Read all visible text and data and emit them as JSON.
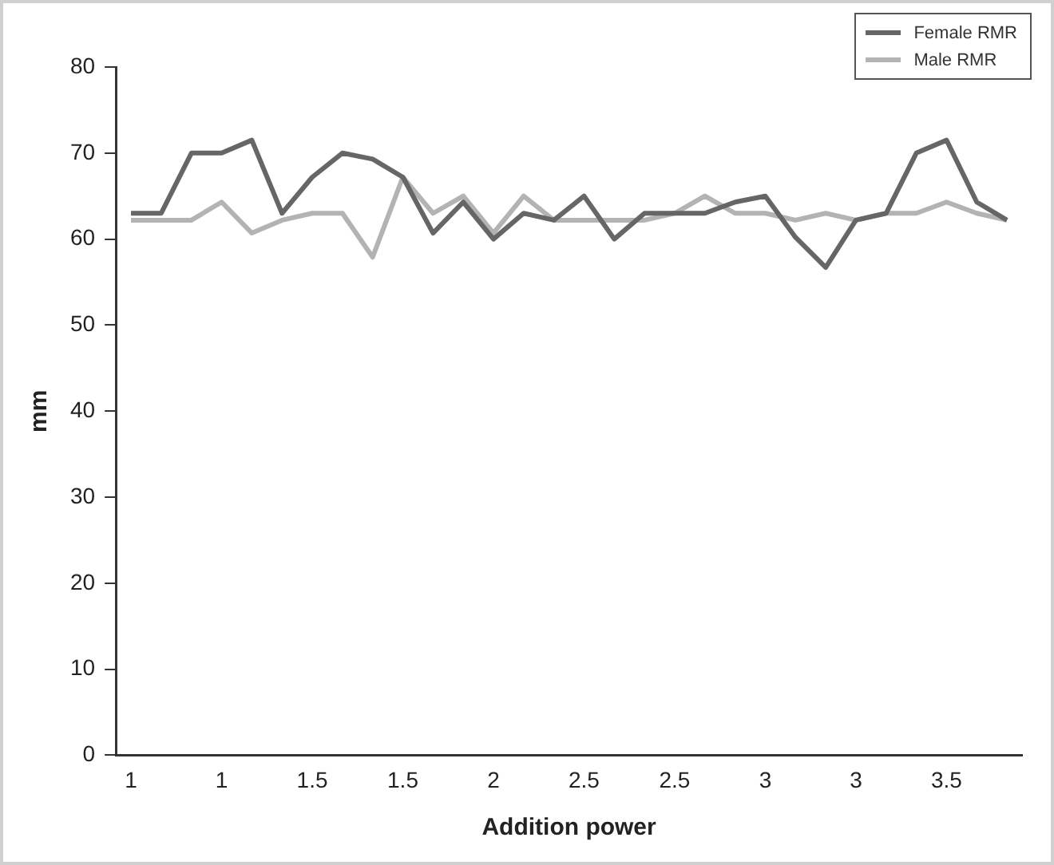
{
  "chart_data": {
    "type": "line",
    "xlabel": "Addition power",
    "ylabel": "mm",
    "categories": [
      "1",
      null,
      null,
      "1",
      null,
      null,
      "1.5",
      null,
      null,
      "1.5",
      null,
      null,
      "2",
      null,
      null,
      "2.5",
      null,
      null,
      "2.5",
      null,
      null,
      "3",
      null,
      null,
      "3",
      null,
      null,
      "3.5",
      null,
      null
    ],
    "series": [
      {
        "name": "Female RMR",
        "color": "#666666",
        "values": [
          63,
          63,
          70,
          70,
          71.5,
          63,
          67.2,
          70,
          69.3,
          67.2,
          60.7,
          64.3,
          60,
          63,
          62.2,
          65,
          60,
          63,
          63,
          63,
          64.3,
          65,
          60.2,
          56.7,
          62.2,
          63,
          70,
          71.5,
          64.3,
          62.2
        ]
      },
      {
        "name": "Male RMR",
        "color": "#b3b3b3",
        "values": [
          62.2,
          62.2,
          62.2,
          64.3,
          60.7,
          62.2,
          63,
          63,
          57.9,
          67.2,
          63,
          65,
          60.7,
          65,
          62.2,
          62.2,
          62.2,
          62.2,
          63,
          65,
          63,
          63,
          62.2,
          63,
          62.2,
          63,
          63,
          64.3,
          63,
          62.2
        ]
      }
    ],
    "ylim": [
      0,
      80
    ],
    "yticks": [
      0,
      10,
      20,
      30,
      40,
      50,
      60,
      70,
      80
    ],
    "grid": false,
    "legend": "top right",
    "marker": "none",
    "line_style": "solid"
  }
}
